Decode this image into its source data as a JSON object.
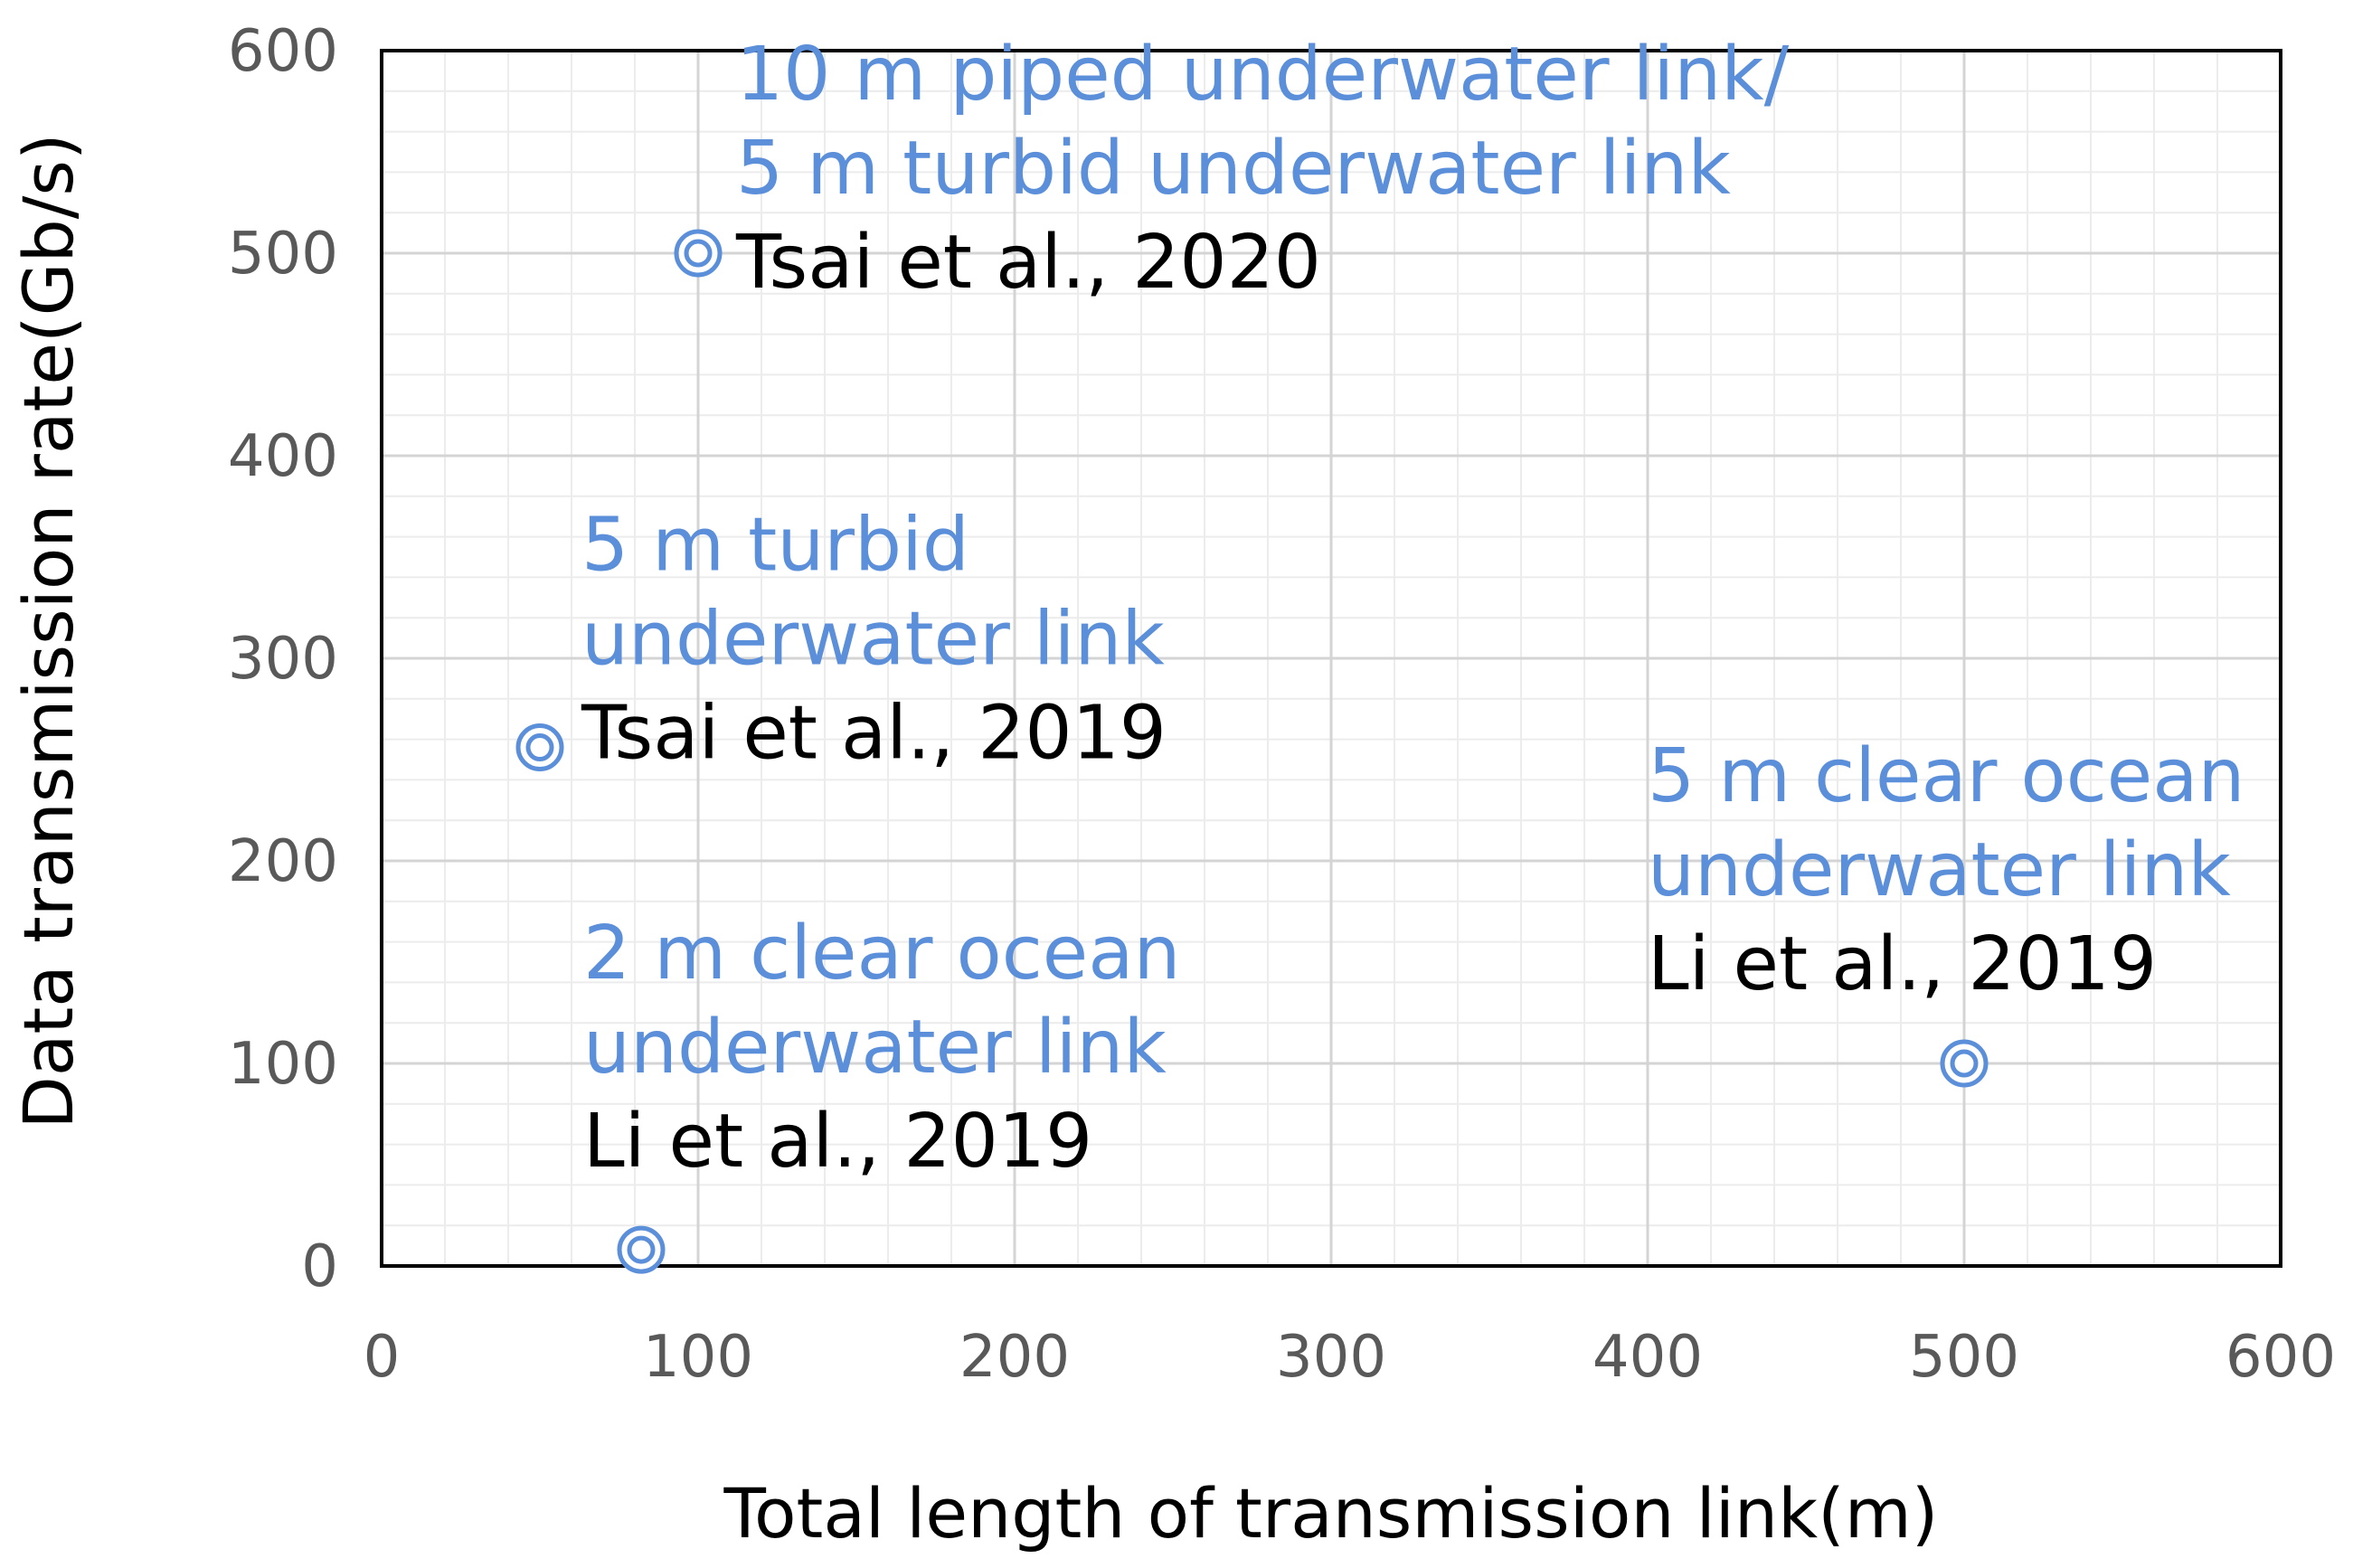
{
  "chart_data": {
    "type": "scatter",
    "title": "",
    "xlabel": "Total length of transmission link(m)",
    "ylabel": "Data transmission rate(Gb/s)",
    "xlim": [
      0,
      600
    ],
    "ylim": [
      0,
      600
    ],
    "xticks": [
      0,
      100,
      200,
      300,
      400,
      500,
      600
    ],
    "yticks": [
      0,
      100,
      200,
      300,
      400,
      500,
      600
    ],
    "grid": true,
    "legend": "none",
    "marker": "double-circle",
    "colors": {
      "marker": "#5b8fd9",
      "annotation": "#5b8fd9",
      "citation": "#000000",
      "grid_major": "#d4d4d4",
      "grid_minor": "#ececec",
      "axis": "#000000",
      "tick_label": "#595959"
    },
    "points": [
      {
        "x": 100,
        "y": 500,
        "description": [
          "10 m piped underwater link/",
          "5 m turbid underwater link"
        ],
        "citation": "Tsai et al., 2020"
      },
      {
        "x": 50,
        "y": 256,
        "description": [
          "5 m turbid",
          "underwater link"
        ],
        "citation": "Tsai et al., 2019"
      },
      {
        "x": 82,
        "y": 8,
        "description": [
          "2 m clear ocean",
          "underwater link"
        ],
        "citation": "Li et al., 2019"
      },
      {
        "x": 500,
        "y": 100,
        "description": [
          "5 m clear ocean",
          "underwater link"
        ],
        "citation": "Li et al., 2019"
      }
    ]
  }
}
